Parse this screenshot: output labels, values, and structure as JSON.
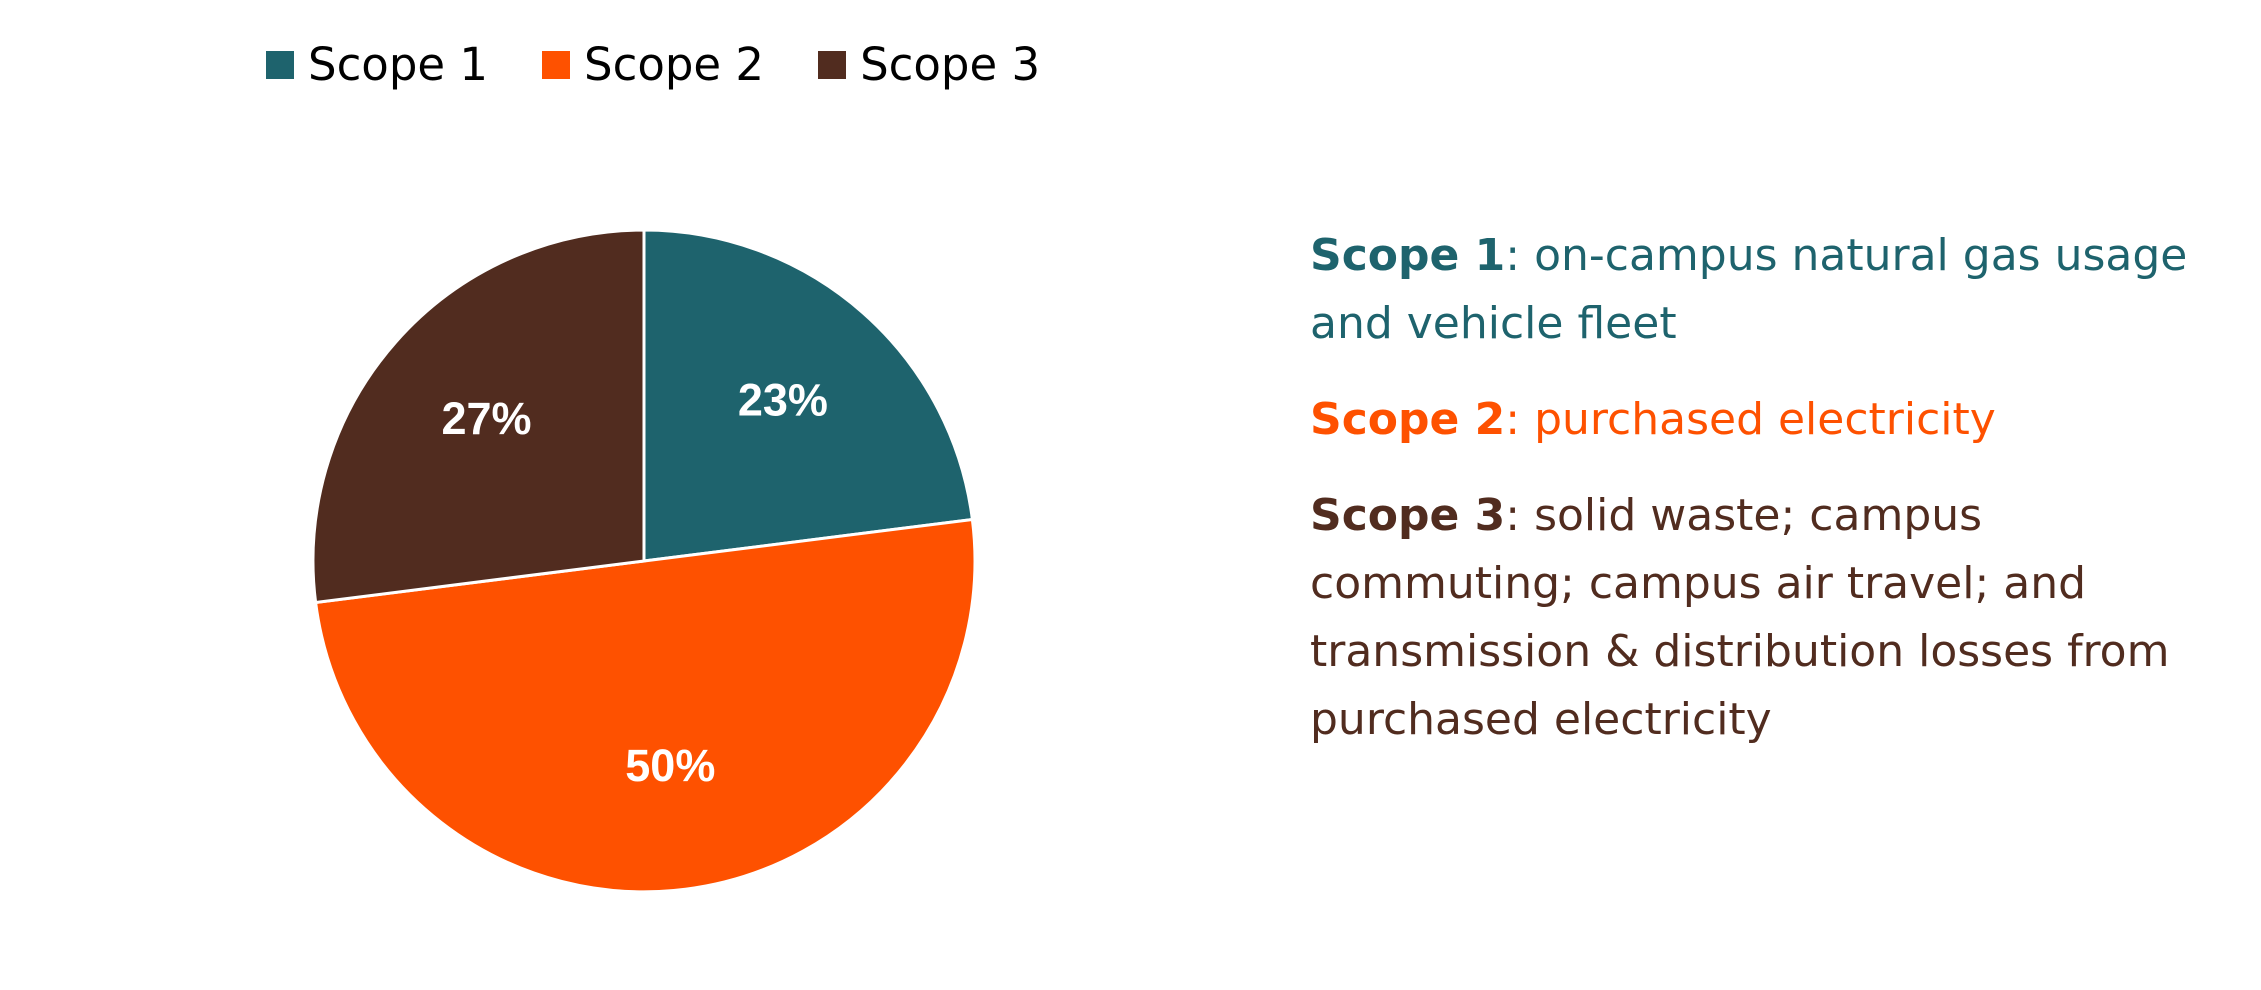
{
  "chart_data": {
    "type": "pie",
    "slices": [
      {
        "name": "Scope 1",
        "value": 23,
        "label": "23%",
        "color": "#1e636d"
      },
      {
        "name": "Scope 2",
        "value": 50,
        "label": "50%",
        "color": "#fe5100"
      },
      {
        "name": "Scope 3",
        "value": 27,
        "label": "27%",
        "color": "#512c1f"
      }
    ],
    "legend_position": "top-left",
    "start_angle": "12 o'clock",
    "direction": "clockwise"
  },
  "legend": [
    {
      "label": "Scope 1",
      "color": "#1e636d"
    },
    {
      "label": "Scope 2",
      "color": "#fe5100"
    },
    {
      "label": "Scope 3",
      "color": "#512c1f"
    }
  ],
  "descriptions": [
    {
      "title": "Scope 1",
      "text": ": on-campus natural gas usage and vehicle fleet",
      "color": "#1e636d"
    },
    {
      "title": "Scope 2",
      "text": ": purchased electricity",
      "color": "#fe5100"
    },
    {
      "title": "Scope 3",
      "text": ": solid waste; campus commuting; campus air travel; and transmission & distribution losses from purchased electricity",
      "color": "#512c1f"
    }
  ]
}
